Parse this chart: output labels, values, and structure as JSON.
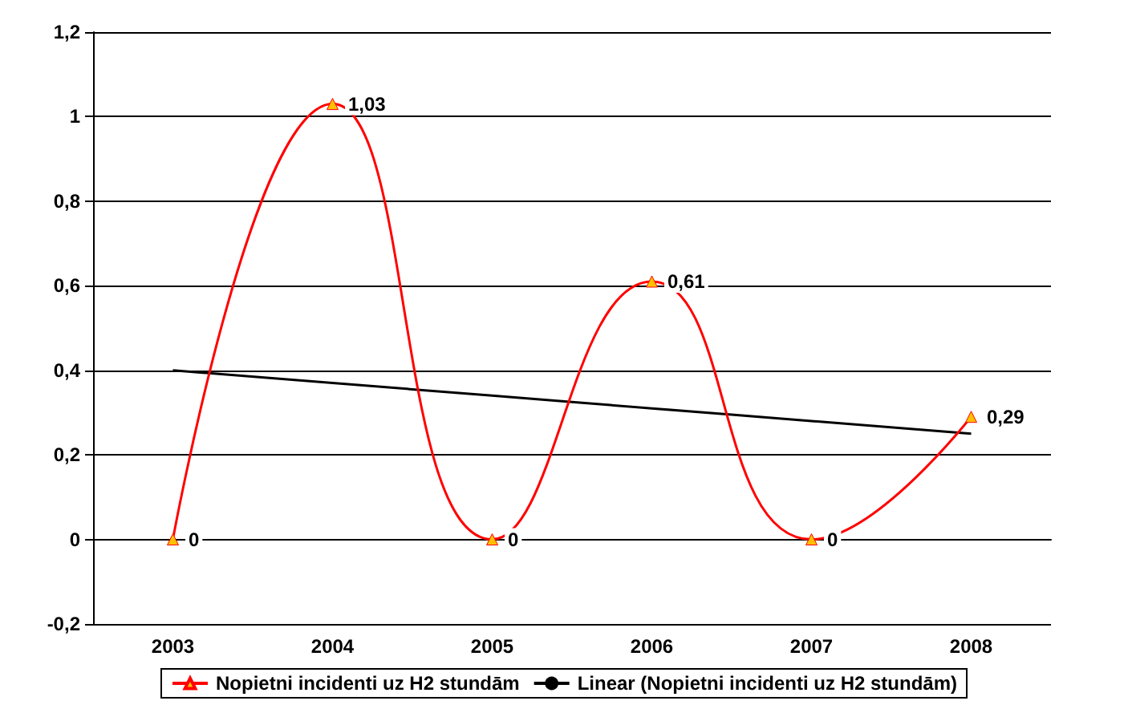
{
  "chart_data": {
    "type": "line",
    "categories": [
      "2003",
      "2004",
      "2005",
      "2006",
      "2007",
      "2008"
    ],
    "series": [
      {
        "name": "Nopietni incidenti uz H2 stundām",
        "color": "#ff0000",
        "values": [
          0,
          1.03,
          0,
          0.61,
          0,
          0.29
        ],
        "value_labels": [
          "0",
          "1,03",
          "0",
          "0,61",
          "0",
          "0,29"
        ],
        "marker": "triangle"
      },
      {
        "name": "Linear (Nopietni incidenti uz H2 stundām)",
        "color": "#000000",
        "type": "line",
        "values": [
          0.4,
          0.37,
          0.34,
          0.31,
          0.28,
          0.25
        ],
        "marker": "none"
      }
    ],
    "ylim": [
      -0.2,
      1.2
    ],
    "yticks": [
      {
        "value": -0.2,
        "label": "-0,2"
      },
      {
        "value": 0,
        "label": "0"
      },
      {
        "value": 0.2,
        "label": "0,2"
      },
      {
        "value": 0.4,
        "label": "0,4"
      },
      {
        "value": 0.6,
        "label": "0,6"
      },
      {
        "value": 0.8,
        "label": "0,8"
      },
      {
        "value": 1,
        "label": "1"
      },
      {
        "value": 1.2,
        "label": "1,2"
      }
    ],
    "grid": "y",
    "legend": "bottom",
    "line_style": "solid"
  }
}
